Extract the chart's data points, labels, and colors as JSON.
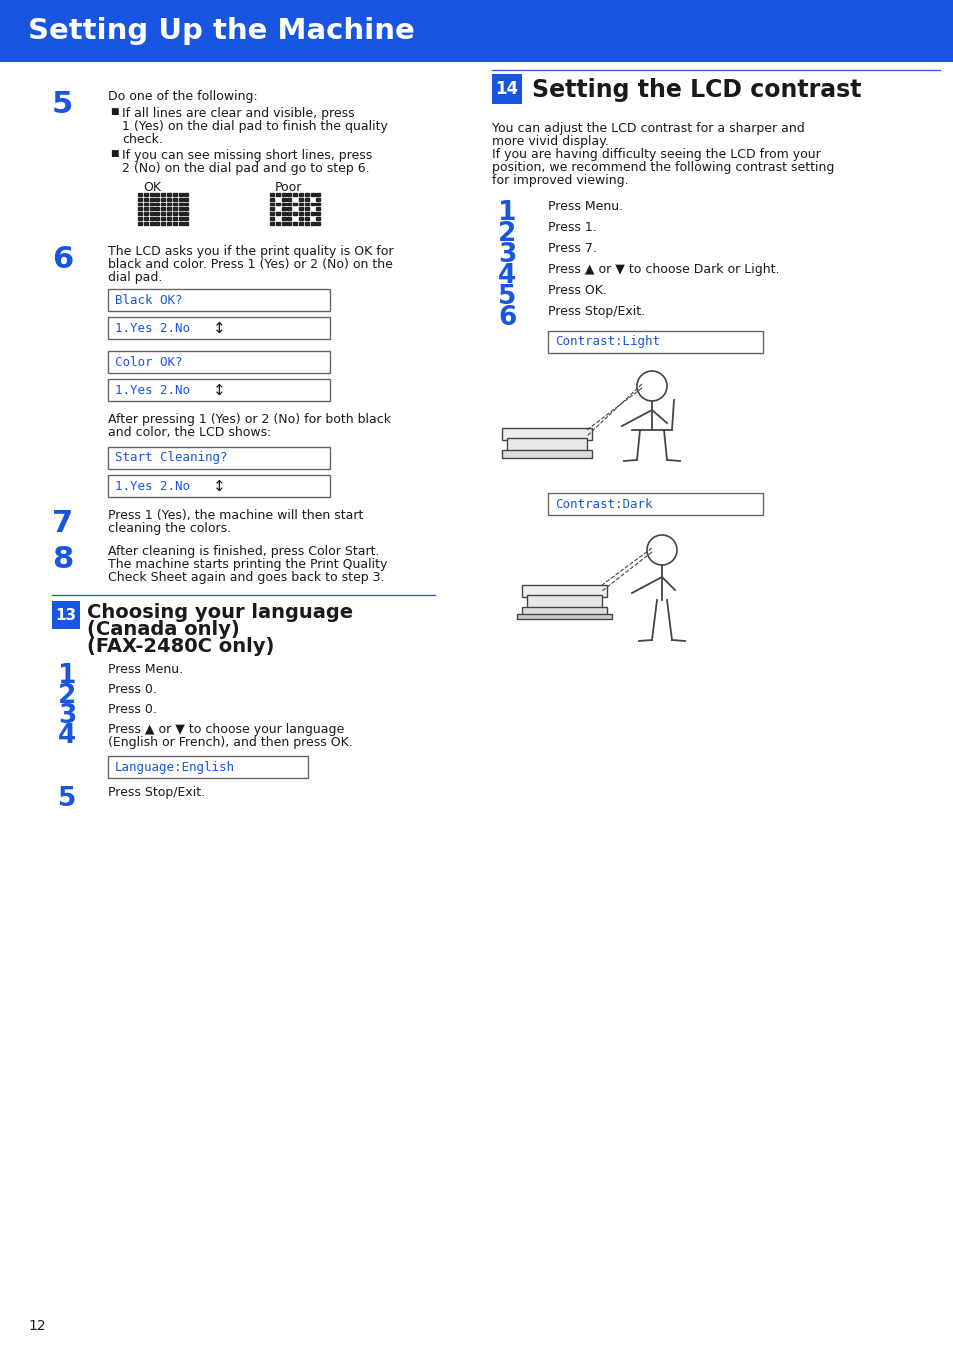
{
  "title": "Setting Up the Machine",
  "title_bg": "#1855E0",
  "title_color": "#FFFFFF",
  "page_bg": "#FFFFFF",
  "blue": "#1855E0",
  "step5_num": "5",
  "step5_intro": "Do one of the following:",
  "step5_b1a": "If all lines are clear and visible, press",
  "step5_b1b": "1 (Yes) on the dial pad to finish the quality",
  "step5_b1c": "check.",
  "step5_b2a": "If you can see missing short lines, press",
  "step5_b2b": "2 (No) on the dial pad and go to step 6.",
  "ok_label": "OK",
  "poor_label": "Poor",
  "step6_num": "6",
  "step6_text_a": "The LCD asks you if the print quality is OK for",
  "step6_text_b": "black and color. Press 1 (Yes) or 2 (No) on the",
  "step6_text_c": "dial pad.",
  "lcd1": "Black OK?",
  "lcd2": "1.Yes 2.No",
  "lcd3": "Color OK?",
  "lcd4": "1.Yes 2.No",
  "after_a": "After pressing 1 (Yes) or 2 (No) for both black",
  "after_b": "and color, the LCD shows:",
  "lcd5": "Start Cleaning?",
  "lcd6": "1.Yes 2.No",
  "step7_num": "7",
  "step7_a": "Press 1 (Yes), the machine will then start",
  "step7_b": "cleaning the colors.",
  "step8_num": "8",
  "step8_a": "After cleaning is finished, press Color Start.",
  "step8_b": "The machine starts printing the Print Quality",
  "step8_c": "Check Sheet again and goes back to step 3.",
  "sec13_num": "13",
  "sec13_title_a": "Choosing your language",
  "sec13_title_b": "(Canada only)",
  "sec13_title_c": "(FAX-2480C only)",
  "s13_1": "Press Menu.",
  "s13_2": "Press 0.",
  "s13_3": "Press 0.",
  "s13_4a": "Press ▲ or ▼ to choose your language",
  "s13_4b": "(English or French), and then press OK.",
  "s13_lcd": "Language:English",
  "s13_5": "Press Stop/Exit.",
  "sec14_num": "14",
  "sec14_title": "Setting the LCD contrast",
  "s14_intro_a": "You can adjust the LCD contrast for a sharper and",
  "s14_intro_b": "more vivid display.",
  "s14_intro_c": "If you are having difficulty seeing the LCD from your",
  "s14_intro_d": "position, we recommend the following contrast setting",
  "s14_intro_e": "for improved viewing.",
  "s14_1": "Press Menu.",
  "s14_2": "Press 1.",
  "s14_3": "Press 7.",
  "s14_4": "Press ▲ or ▼ to choose Dark or Light.",
  "s14_5": "Press OK.",
  "s14_6": "Press Stop/Exit.",
  "s14_lcd1": "Contrast:Light",
  "s14_lcd2": "Contrast:Dark",
  "page_num": "12",
  "fig_color": "#444444"
}
